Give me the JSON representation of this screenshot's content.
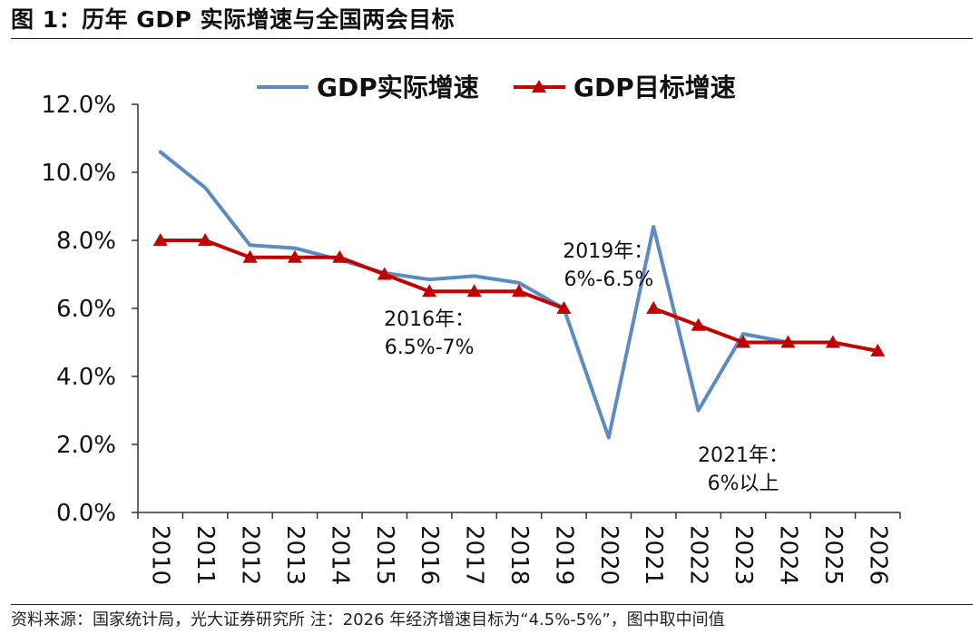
{
  "figure": {
    "title": "图 1：历年 GDP 实际增速与全国两会目标",
    "footnote": "资料来源：国家统计局，光大证券研究所 注：2026 年经济增速目标为“4.5%-5%”，图中取中间值"
  },
  "colors": {
    "actual": "#5b8bc0",
    "target": "#c00000",
    "axis": "#333333",
    "text": "#111111"
  },
  "chart_data": {
    "type": "line",
    "title": "",
    "xlabel": "",
    "ylabel": "",
    "categories": [
      "2010",
      "2011",
      "2012",
      "2013",
      "2014",
      "2015",
      "2016",
      "2017",
      "2018",
      "2019",
      "2020",
      "2021",
      "2022",
      "2023",
      "2024",
      "2025",
      "2026"
    ],
    "ylim": [
      0,
      12
    ],
    "yticks": [
      "0.0%",
      "2.0%",
      "4.0%",
      "6.0%",
      "8.0%",
      "10.0%",
      "12.0%"
    ],
    "ytick_values": [
      0,
      2,
      4,
      6,
      8,
      10,
      12
    ],
    "grid": false,
    "legend_position": "top",
    "series": [
      {
        "name": "GDP实际增速",
        "color": "#5b8bc0",
        "marker": "none",
        "values": [
          10.6,
          9.55,
          7.86,
          7.77,
          7.43,
          7.04,
          6.85,
          6.95,
          6.75,
          6.0,
          2.2,
          8.4,
          3.0,
          5.25,
          5.0,
          null,
          null
        ]
      },
      {
        "name": "GDP目标增速",
        "color": "#c00000",
        "marker": "triangle",
        "values": [
          8.0,
          8.0,
          7.5,
          7.5,
          7.5,
          7.0,
          6.5,
          6.5,
          6.5,
          6.0,
          null,
          6.0,
          5.5,
          5.0,
          5.0,
          5.0,
          4.75
        ]
      }
    ],
    "annotations": [
      {
        "lines": [
          "2016年：",
          "6.5%-7%"
        ],
        "category": "2016",
        "y": 5.5,
        "anchor": "middle"
      },
      {
        "lines": [
          "2019年：",
          "6%-6.5%"
        ],
        "category": "2021",
        "y": 7.5,
        "anchor": "end"
      },
      {
        "lines": [
          "2021年：",
          "6%以上"
        ],
        "category": "2023",
        "y": 1.5,
        "anchor": "middle"
      }
    ]
  }
}
